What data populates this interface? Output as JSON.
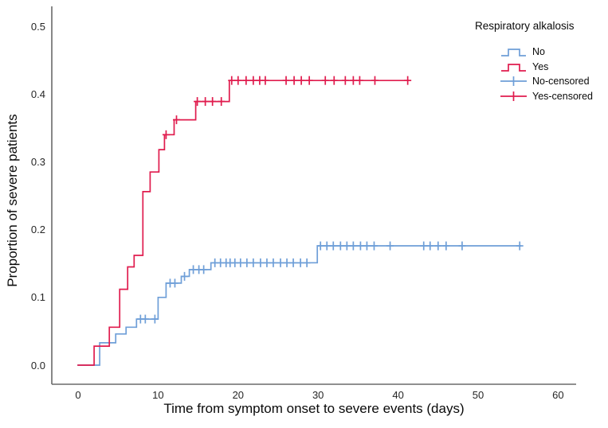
{
  "chart_data": {
    "type": "line",
    "subtype": "kaplan_meier_cumulative_incidence_step",
    "title": "",
    "xlabel": "Time from symptom onset to severe events (days)",
    "ylabel": "Proportion of severe patients",
    "xlim": [
      0,
      60
    ],
    "ylim": [
      0.0,
      0.5
    ],
    "x_ticks": [
      "0",
      "10",
      "20",
      "30",
      "40",
      "50",
      "60"
    ],
    "y_ticks": [
      "0.0",
      "0.1",
      "0.2",
      "0.3",
      "0.4",
      "0.5"
    ],
    "grid": false,
    "legend": {
      "title": "Respiratory alkalosis",
      "position": "top-right",
      "entries": [
        {
          "label": "No",
          "glyph": "step",
          "color": "#6f9fd8"
        },
        {
          "label": "Yes",
          "glyph": "step",
          "color": "#e01c4e"
        },
        {
          "label": "No-censored",
          "glyph": "plus",
          "color": "#6f9fd8"
        },
        {
          "label": "Yes-censored",
          "glyph": "plus",
          "color": "#e01c4e"
        }
      ]
    },
    "series": [
      {
        "name": "No",
        "color": "#6f9fd8",
        "steps": [
          [
            0,
            0
          ],
          [
            2.7,
            0
          ],
          [
            2.7,
            0.033
          ],
          [
            4.7,
            0.033
          ],
          [
            4.7,
            0.046
          ],
          [
            6.0,
            0.046
          ],
          [
            6.0,
            0.056
          ],
          [
            7.3,
            0.056
          ],
          [
            7.3,
            0.068
          ],
          [
            10.0,
            0.068
          ],
          [
            10.0,
            0.1
          ],
          [
            11.0,
            0.1
          ],
          [
            11.0,
            0.121
          ],
          [
            12.9,
            0.121
          ],
          [
            12.9,
            0.131
          ],
          [
            13.9,
            0.131
          ],
          [
            13.9,
            0.141
          ],
          [
            16.6,
            0.141
          ],
          [
            16.6,
            0.151
          ],
          [
            29.9,
            0.151
          ],
          [
            29.9,
            0.176
          ],
          [
            55.3,
            0.176
          ]
        ],
        "censored": [
          [
            7.8,
            0.068
          ],
          [
            8.4,
            0.068
          ],
          [
            9.6,
            0.068
          ],
          [
            11.5,
            0.121
          ],
          [
            12.1,
            0.121
          ],
          [
            13.3,
            0.131
          ],
          [
            14.4,
            0.141
          ],
          [
            15.1,
            0.141
          ],
          [
            15.7,
            0.141
          ],
          [
            17.1,
            0.151
          ],
          [
            17.8,
            0.151
          ],
          [
            18.5,
            0.151
          ],
          [
            19.0,
            0.151
          ],
          [
            19.6,
            0.151
          ],
          [
            20.3,
            0.151
          ],
          [
            21.1,
            0.151
          ],
          [
            21.9,
            0.151
          ],
          [
            22.8,
            0.151
          ],
          [
            23.6,
            0.151
          ],
          [
            24.4,
            0.151
          ],
          [
            25.3,
            0.151
          ],
          [
            26.1,
            0.151
          ],
          [
            26.9,
            0.151
          ],
          [
            27.8,
            0.151
          ],
          [
            28.6,
            0.151
          ],
          [
            30.3,
            0.176
          ],
          [
            31.1,
            0.176
          ],
          [
            31.9,
            0.176
          ],
          [
            32.8,
            0.176
          ],
          [
            33.6,
            0.176
          ],
          [
            34.4,
            0.176
          ],
          [
            35.3,
            0.176
          ],
          [
            36.1,
            0.176
          ],
          [
            37.0,
            0.176
          ],
          [
            39.0,
            0.176
          ],
          [
            43.2,
            0.176
          ],
          [
            44.0,
            0.176
          ],
          [
            45.0,
            0.176
          ],
          [
            46.0,
            0.176
          ],
          [
            48.0,
            0.176
          ],
          [
            55.2,
            0.176
          ]
        ]
      },
      {
        "name": "Yes",
        "color": "#e01c4e",
        "steps": [
          [
            0,
            0
          ],
          [
            2.0,
            0
          ],
          [
            2.0,
            0.028
          ],
          [
            3.9,
            0.028
          ],
          [
            3.9,
            0.056
          ],
          [
            5.2,
            0.056
          ],
          [
            5.2,
            0.112
          ],
          [
            6.2,
            0.112
          ],
          [
            6.2,
            0.145
          ],
          [
            7.0,
            0.145
          ],
          [
            7.0,
            0.162
          ],
          [
            8.1,
            0.162
          ],
          [
            8.1,
            0.256
          ],
          [
            9.0,
            0.256
          ],
          [
            9.0,
            0.285
          ],
          [
            10.1,
            0.285
          ],
          [
            10.1,
            0.318
          ],
          [
            10.8,
            0.318
          ],
          [
            10.8,
            0.34
          ],
          [
            12.0,
            0.34
          ],
          [
            12.0,
            0.362
          ],
          [
            14.7,
            0.362
          ],
          [
            14.7,
            0.389
          ],
          [
            18.9,
            0.389
          ],
          [
            18.9,
            0.42
          ],
          [
            41.3,
            0.42
          ]
        ],
        "censored": [
          [
            11.0,
            0.34
          ],
          [
            12.3,
            0.362
          ],
          [
            14.9,
            0.389
          ],
          [
            15.9,
            0.389
          ],
          [
            16.8,
            0.389
          ],
          [
            17.9,
            0.389
          ],
          [
            19.2,
            0.42
          ],
          [
            20.0,
            0.42
          ],
          [
            21.0,
            0.42
          ],
          [
            21.9,
            0.42
          ],
          [
            22.7,
            0.42
          ],
          [
            23.4,
            0.42
          ],
          [
            26.0,
            0.42
          ],
          [
            27.0,
            0.42
          ],
          [
            27.9,
            0.42
          ],
          [
            28.9,
            0.42
          ],
          [
            30.9,
            0.42
          ],
          [
            32.0,
            0.42
          ],
          [
            33.4,
            0.42
          ],
          [
            34.4,
            0.42
          ],
          [
            35.2,
            0.42
          ],
          [
            37.1,
            0.42
          ],
          [
            41.2,
            0.42
          ]
        ]
      }
    ]
  },
  "colors": {
    "axis": "#6a6a6a",
    "tick_text": "#262626",
    "title_text": "#0a0a0a",
    "background": "#ffffff"
  }
}
